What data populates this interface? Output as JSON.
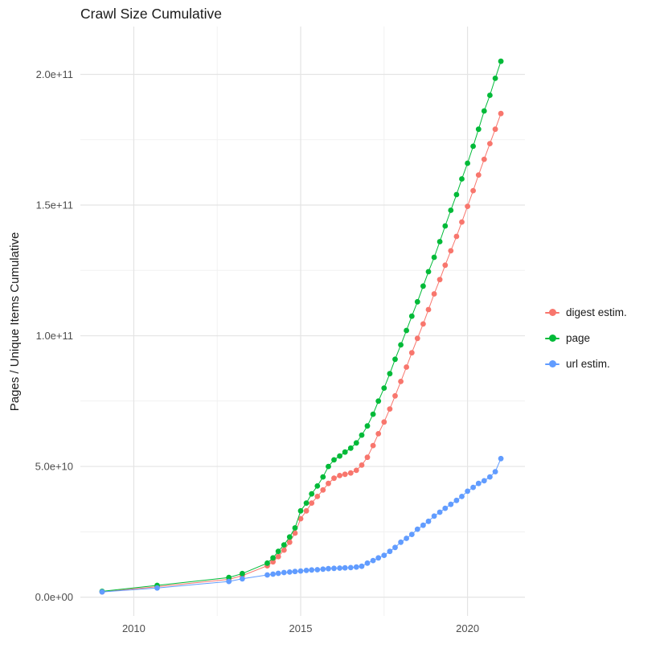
{
  "page": {
    "background": "#ffffff"
  },
  "chart_data": {
    "type": "scatter-line",
    "title": "Crawl Size Cumulative",
    "xlabel": "",
    "ylabel": "Pages / Unique Items Cumulative",
    "legend_position": "right",
    "grid": {
      "major_color": "#e4e4e4",
      "minor_color": "#f1f1f1"
    },
    "text_colors": {
      "title": "#1a1a1a",
      "axis_title": "#1a1a1a",
      "tick": "#4d4d4d",
      "legend": "#1a1a1a"
    },
    "x_domain": [
      2008.4,
      2021.72
    ],
    "y_domain": [
      -7200000000.0,
      218300000000.0
    ],
    "x_ticks": [
      {
        "value": 2010,
        "label": "2010"
      },
      {
        "value": 2015,
        "label": "2015"
      },
      {
        "value": 2020,
        "label": "2020"
      }
    ],
    "x_minor_ticks": [
      2012.5,
      2017.5
    ],
    "y_ticks": [
      {
        "value": 0,
        "label": "0.0e+00"
      },
      {
        "value": 50000000000.0,
        "label": "5.0e+10"
      },
      {
        "value": 100000000000.0,
        "label": "1.0e+11"
      },
      {
        "value": 150000000000.0,
        "label": "1.5e+11"
      },
      {
        "value": 200000000000.0,
        "label": "2.0e+11"
      }
    ],
    "y_minor_ticks": [
      25000000000.0,
      75000000000.0,
      125000000000.0,
      175000000000.0
    ],
    "x": [
      2009.05,
      2010.7,
      2012.85,
      2013.25,
      2014.0,
      2014.17,
      2014.33,
      2014.5,
      2014.67,
      2014.83,
      2015.0,
      2015.17,
      2015.33,
      2015.5,
      2015.67,
      2015.83,
      2016.0,
      2016.17,
      2016.33,
      2016.5,
      2016.67,
      2016.83,
      2017.0,
      2017.17,
      2017.33,
      2017.5,
      2017.67,
      2017.83,
      2018.0,
      2018.17,
      2018.33,
      2018.5,
      2018.67,
      2018.83,
      2019.0,
      2019.17,
      2019.33,
      2019.5,
      2019.67,
      2019.83,
      2020.0,
      2020.17,
      2020.33,
      2020.5,
      2020.67,
      2020.83,
      2021.0
    ],
    "series": [
      {
        "name": "digest estim.",
        "color": "#F8766D",
        "y": [
          2000000000.0,
          4000000000.0,
          6800000000.0,
          8200000000.0,
          12000000000.0,
          13500000000.0,
          15500000000.0,
          18000000000.0,
          21000000000.0,
          24500000000.0,
          30000000000.0,
          33000000000.0,
          36000000000.0,
          38500000000.0,
          41000000000.0,
          43500000000.0,
          45500000000.0,
          46500000000.0,
          47000000000.0,
          47500000000.0,
          48500000000.0,
          50500000000.0,
          53500000000.0,
          58000000000.0,
          62500000000.0,
          67000000000.0,
          72000000000.0,
          77000000000.0,
          82500000000.0,
          88000000000.0,
          93500000000.0,
          99000000000.0,
          104500000000.0,
          110000000000.0,
          116000000000.0,
          121500000000.0,
          127000000000.0,
          132500000000.0,
          138000000000.0,
          143500000000.0,
          149500000000.0,
          155500000000.0,
          161500000000.0,
          167500000000.0,
          173500000000.0,
          179000000000.0,
          185000000000.0
        ]
      },
      {
        "name": "page",
        "color": "#00BA38",
        "y": [
          2200000000.0,
          4500000000.0,
          7500000000.0,
          9000000000.0,
          13000000000.0,
          15000000000.0,
          17500000000.0,
          20000000000.0,
          23000000000.0,
          26500000000.0,
          33000000000.0,
          36000000000.0,
          39500000000.0,
          42500000000.0,
          46000000000.0,
          50000000000.0,
          52500000000.0,
          54000000000.0,
          55500000000.0,
          57000000000.0,
          59000000000.0,
          62000000000.0,
          65500000000.0,
          70000000000.0,
          75000000000.0,
          80000000000.0,
          85500000000.0,
          91000000000.0,
          96500000000.0,
          102000000000.0,
          107500000000.0,
          113000000000.0,
          119000000000.0,
          124500000000.0,
          130000000000.0,
          136000000000.0,
          142000000000.0,
          148000000000.0,
          154000000000.0,
          160000000000.0,
          166000000000.0,
          172500000000.0,
          179000000000.0,
          186000000000.0,
          192000000000.0,
          198500000000.0,
          205000000000.0
        ]
      },
      {
        "name": "url estim.",
        "color": "#619CFF",
        "y": [
          2000000000.0,
          3500000000.0,
          6000000000.0,
          7000000000.0,
          8500000000.0,
          8800000000.0,
          9100000000.0,
          9400000000.0,
          9600000000.0,
          9800000000.0,
          10000000000.0,
          10200000000.0,
          10400000000.0,
          10500000000.0,
          10700000000.0,
          10900000000.0,
          11000000000.0,
          11100000000.0,
          11200000000.0,
          11300000000.0,
          11500000000.0,
          11800000000.0,
          13000000000.0,
          14000000000.0,
          15000000000.0,
          16000000000.0,
          17500000000.0,
          19000000000.0,
          21000000000.0,
          22500000000.0,
          24000000000.0,
          26000000000.0,
          27500000000.0,
          29000000000.0,
          31000000000.0,
          32500000000.0,
          34000000000.0,
          35500000000.0,
          37000000000.0,
          38500000000.0,
          40500000000.0,
          42000000000.0,
          43500000000.0,
          44500000000.0,
          46000000000.0,
          48000000000.0,
          53000000000.0
        ]
      }
    ]
  }
}
